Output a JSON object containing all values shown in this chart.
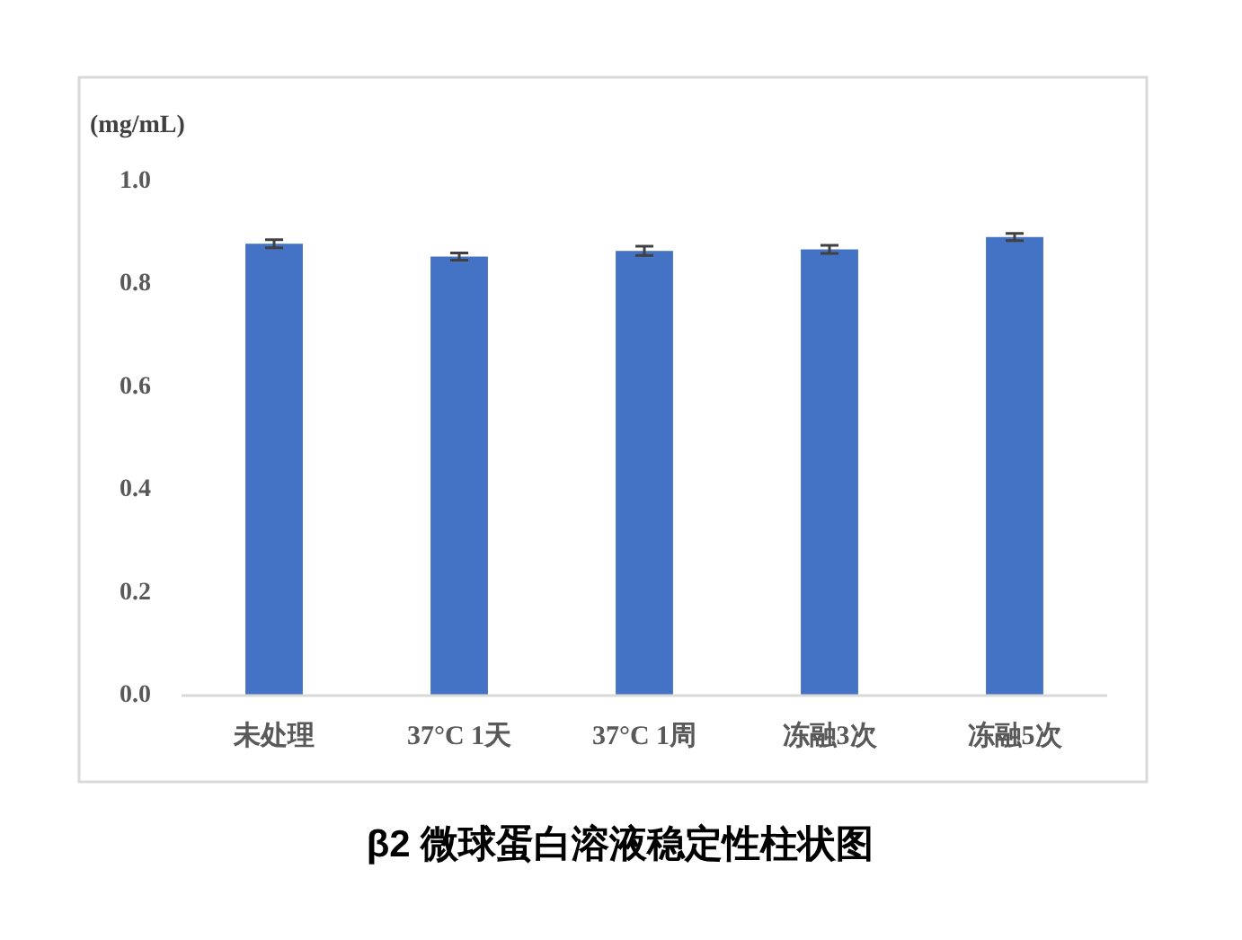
{
  "chart_data": {
    "type": "bar",
    "title": "β2 微球蛋白溶液稳定性柱状图",
    "ylabel": "(mg/mL)",
    "categories": [
      "未处理",
      "37°C 1天",
      "37°C 1周",
      "冻融3次",
      "冻融5次"
    ],
    "values": [
      0.879,
      0.854,
      0.865,
      0.868,
      0.892
    ],
    "errors": [
      0.008,
      0.007,
      0.009,
      0.008,
      0.007
    ],
    "color": "#4472c4",
    "ylim": [
      0,
      1.0
    ],
    "yticks": [
      {
        "value": 0,
        "label": "0.0"
      },
      0.2,
      0.4,
      0.6,
      0.8,
      {
        "value": 1,
        "label": "1.0"
      }
    ],
    "grid": false
  }
}
